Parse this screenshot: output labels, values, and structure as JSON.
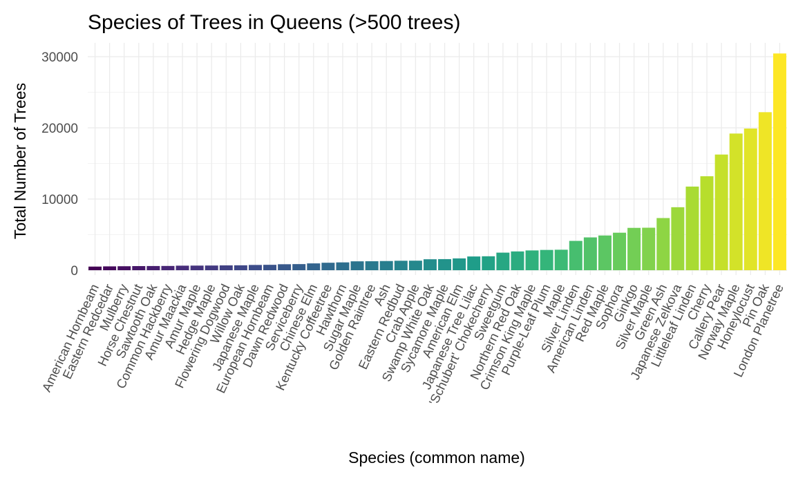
{
  "chart_data": {
    "type": "bar",
    "title": "Species of Trees in Queens (>500 trees)",
    "xlabel": "Species (common name)",
    "ylabel": "Total Number of Trees",
    "ylim": [
      0,
      31500
    ],
    "yticks": [
      0,
      10000,
      20000,
      30000
    ],
    "grid": true,
    "legend": "none",
    "color_scale": "viridis",
    "categories": [
      "American Hornbeam",
      "Eastern Redcedar",
      "Mulberry",
      "Horse Chestnut",
      "Sawtooth Oak",
      "Common Hackberry",
      "Amur Maackia",
      "Amur Maple",
      "Hedge Maple",
      "Flowering Dogwood",
      "Willow Oak",
      "Japanese Maple",
      "European Hornbeam",
      "Dawn Redwood",
      "Serviceberry",
      "Chinese Elm",
      "Kentucky Coffeetree",
      "Hawthorn",
      "Sugar Maple",
      "Golden Raintree",
      "Ash",
      "Eastern Redbud",
      "Crab Apple",
      "Swamp White Oak",
      "Sycamore Maple",
      "American Elm",
      "Japanese Tree Lilac",
      "'Schubert' Chokecherry",
      "Sweetgum",
      "Northern Red Oak",
      "Crimson King Maple",
      "Purple-Leaf Plum",
      "Maple",
      "Silver Linden",
      "American Linden",
      "Red Maple",
      "Sophora",
      "Ginkgo",
      "Silver Maple",
      "Green Ash",
      "Japanese Zelkova",
      "Littleleaf Linden",
      "Cherry",
      "Callery Pear",
      "Norway Maple",
      "Honeylocust",
      "Pin Oak",
      "London Planetree"
    ],
    "values": [
      510,
      540,
      560,
      580,
      590,
      600,
      640,
      650,
      660,
      680,
      690,
      740,
      760,
      840,
      860,
      960,
      1050,
      1100,
      1250,
      1260,
      1290,
      1330,
      1340,
      1540,
      1560,
      1660,
      1930,
      1960,
      2470,
      2640,
      2780,
      2850,
      2880,
      4120,
      4610,
      4880,
      5270,
      5950,
      5970,
      7330,
      8850,
      11750,
      13200,
      16250,
      19200,
      19900,
      22200,
      30450
    ]
  }
}
